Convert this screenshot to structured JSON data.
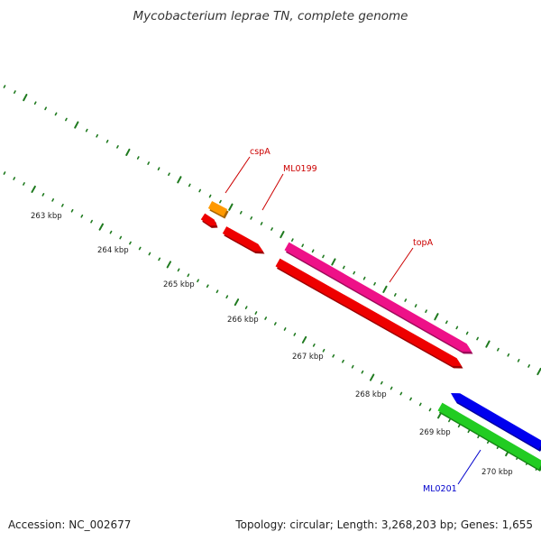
{
  "title": "Mycobacterium leprae TN, complete genome",
  "footer": {
    "accession": "Accession: NC_002677",
    "summary": "Topology: circular; Length: 3,268,203 bp; Genes: 1,655"
  },
  "colors": {
    "backbone": "#8a8a8a",
    "tick": "#1f7a1f",
    "label_red": "#cc0000",
    "label_blue": "#0000cc",
    "gene_orange": "#ff9900",
    "gene_red": "#ee0000",
    "gene_magenta": "#ee1188",
    "gene_blue": "#0000ee",
    "gene_green": "#22cc22"
  },
  "kbp_labels": [
    "263 kbp",
    "264 kbp",
    "265 kbp",
    "266 kbp",
    "267 kbp",
    "268 kbp",
    "269 kbp",
    "270 kbp"
  ],
  "genes": [
    {
      "id": "orange-small",
      "color_key": "gene_orange"
    },
    {
      "id": "red-small",
      "color_key": "gene_red"
    },
    {
      "id": "ML0199",
      "color_key": "gene_red"
    },
    {
      "id": "topA",
      "color_key": "gene_magenta"
    },
    {
      "id": "red-long",
      "color_key": "gene_red"
    },
    {
      "id": "blue",
      "color_key": "gene_blue"
    },
    {
      "id": "ML0201",
      "color_key": "gene_green"
    }
  ],
  "gene_labels": [
    {
      "text": "cspA",
      "color_key": "label_red"
    },
    {
      "text": "ML0199",
      "color_key": "label_red"
    },
    {
      "text": "topA",
      "color_key": "label_red"
    },
    {
      "text": "ML0201",
      "color_key": "label_blue"
    }
  ]
}
